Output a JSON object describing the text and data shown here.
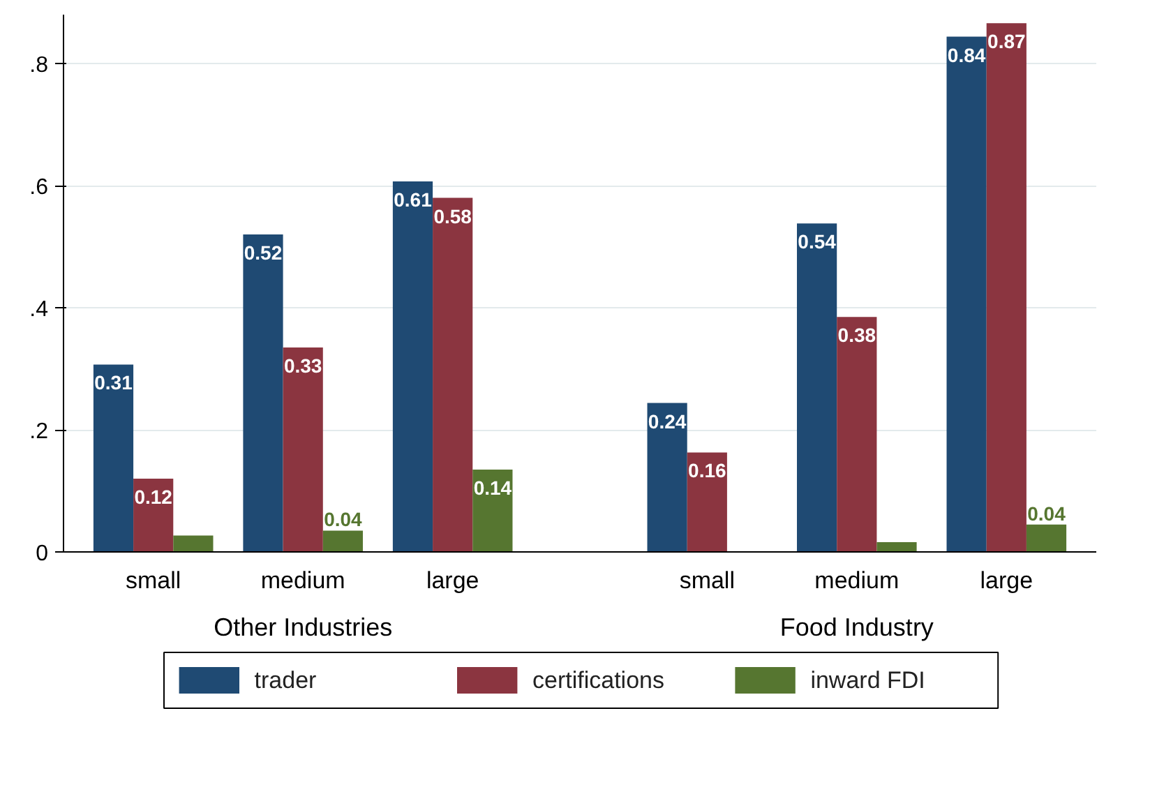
{
  "chart_data": {
    "type": "bar",
    "categories": [
      "small",
      "medium",
      "large",
      "small",
      "medium",
      "large"
    ],
    "annotations": [
      "Other Industries",
      "Food Industry"
    ],
    "series": [
      {
        "name": "trader",
        "color": "#1f4a73",
        "values": [
          0.307,
          0.52,
          0.607,
          0.244,
          0.538,
          0.844
        ],
        "value_labels": [
          "0.31",
          "0.52",
          "0.61",
          "0.24",
          "0.54",
          "0.84"
        ]
      },
      {
        "name": "certifications",
        "color": "#8b3540",
        "values": [
          0.12,
          0.335,
          0.58,
          0.163,
          0.385,
          0.866
        ],
        "value_labels": [
          "0.12",
          "0.33",
          "0.58",
          "0.16",
          "0.38",
          "0.87"
        ]
      },
      {
        "name": "inward FDI",
        "color": "#567630",
        "values": [
          0.027,
          0.035,
          0.135,
          null,
          0.016,
          0.045
        ],
        "value_labels": [
          null,
          "0.04",
          "0.14",
          null,
          null,
          "0.04"
        ]
      }
    ],
    "ylim": [
      0,
      0.88
    ],
    "yticks": [
      0,
      {
        "value": 0.2,
        "label": ".2"
      },
      {
        "value": 0.4,
        "label": ".4"
      },
      {
        "value": 0.6,
        "label": ".6"
      },
      {
        "value": 0.8,
        "label": ".8"
      }
    ],
    "grid": "y",
    "legend": "bottom"
  }
}
